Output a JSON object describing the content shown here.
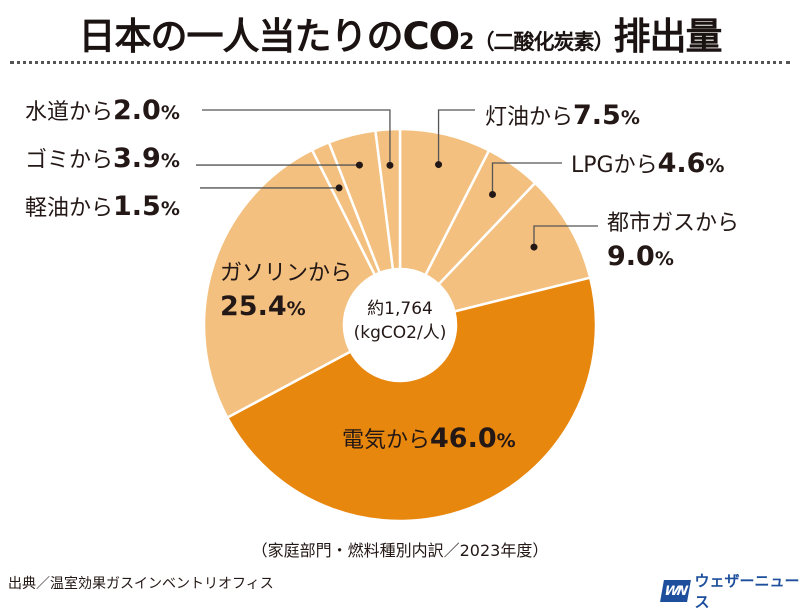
{
  "title": {
    "main": "日本の一人当たりのCO",
    "subscript": "2",
    "paren": "（二酸化炭素）",
    "end": "排出量"
  },
  "chart_data": {
    "type": "pie",
    "donut": true,
    "title": "日本の一人当たりのCO2（二酸化炭素）排出量",
    "start": "top",
    "direction": "clockwise",
    "unit": "%",
    "center_label": [
      "約1,764",
      "(kgCO2/人)"
    ],
    "categories": [
      "灯油から",
      "LPGから",
      "都市ガスから",
      "電気から",
      "ガソリンから",
      "軽油から",
      "ゴミから",
      "水道から"
    ],
    "values": [
      7.5,
      4.6,
      9.0,
      46.0,
      25.4,
      1.5,
      3.9,
      2.0
    ],
    "value_labels": [
      "7.5",
      "4.6",
      "9.0",
      "46.0",
      "25.4",
      "1.5",
      "3.9",
      "2.0"
    ],
    "colors": [
      "#f3c07f",
      "#f3c07f",
      "#f3c07f",
      "#e8870e",
      "#f3c07f",
      "#f3c07f",
      "#f3c07f",
      "#f3c07f"
    ],
    "note": "（家庭部門・燃料種別内訳／2023年度）"
  },
  "footer": {
    "source": "出典／温室効果ガスインベントリオフィス",
    "logo_mark": "WN",
    "logo_name": "ウェザーニュース"
  },
  "colors": {
    "light_slice": "#f3c07f",
    "dark_slice": "#e8870e",
    "logo_blue": "#1d4f9c",
    "text": "#231815"
  }
}
